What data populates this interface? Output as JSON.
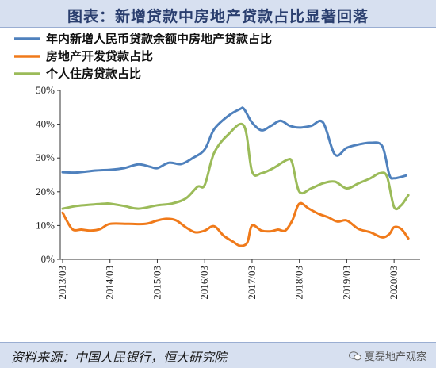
{
  "title": "图表：新增贷款中房地产贷款占比显著回落",
  "source": "资料来源：中国人民银行，恒大研究院",
  "watermark": "夏磊地产观察",
  "chart_data": {
    "type": "line",
    "ylim": [
      0,
      50
    ],
    "y_ticks": [
      "0%",
      "10%",
      "20%",
      "30%",
      "40%",
      "50%"
    ],
    "x_ticks": [
      "2013/03",
      "2014/03",
      "2015/03",
      "2016/03",
      "2017/03",
      "2018/03",
      "2019/03",
      "2020/03"
    ],
    "legend_position": "top-left",
    "series": [
      {
        "name": "年内新增人民币贷款余额中房地产贷款占比",
        "color": "#4f81bd",
        "x": [
          2013.0,
          2013.3,
          2013.7,
          2014.0,
          2014.3,
          2014.6,
          2014.85,
          2015.0,
          2015.25,
          2015.5,
          2015.75,
          2016.0,
          2016.2,
          2016.5,
          2016.75,
          2016.83,
          2017.0,
          2017.2,
          2017.4,
          2017.6,
          2017.8,
          2018.0,
          2018.25,
          2018.5,
          2018.75,
          2019.0,
          2019.25,
          2019.5,
          2019.75,
          2019.9,
          2020.0,
          2020.25
        ],
        "values": [
          25.8,
          25.7,
          26.3,
          26.5,
          27.0,
          28.1,
          27.4,
          27.0,
          28.6,
          28.2,
          30.0,
          32.5,
          38.5,
          42.5,
          44.5,
          44.5,
          40.5,
          38.2,
          39.5,
          41.0,
          39.5,
          39.0,
          39.5,
          40.5,
          31.0,
          33.0,
          34.0,
          34.5,
          33.5,
          25.0,
          24.0,
          24.8
        ]
      },
      {
        "name": "房地产开发贷款占比",
        "color": "#f07a1a",
        "x": [
          2013.0,
          2013.2,
          2013.4,
          2013.6,
          2013.8,
          2014.0,
          2014.4,
          2014.75,
          2015.0,
          2015.2,
          2015.4,
          2015.6,
          2015.8,
          2016.0,
          2016.2,
          2016.4,
          2016.6,
          2016.75,
          2016.9,
          2017.0,
          2017.2,
          2017.4,
          2017.55,
          2017.7,
          2017.85,
          2018.0,
          2018.2,
          2018.4,
          2018.6,
          2018.8,
          2019.0,
          2019.25,
          2019.5,
          2019.75,
          2019.9,
          2020.0,
          2020.15,
          2020.3
        ],
        "values": [
          13.8,
          9.0,
          8.8,
          8.5,
          9.0,
          10.5,
          10.5,
          10.5,
          11.5,
          12.0,
          11.5,
          9.5,
          8.0,
          8.5,
          9.8,
          7.0,
          5.2,
          4.0,
          5.0,
          10.0,
          8.5,
          8.3,
          8.8,
          8.5,
          11.5,
          16.5,
          15.0,
          13.5,
          12.5,
          11.2,
          11.5,
          9.0,
          8.0,
          6.5,
          7.5,
          9.5,
          9.0,
          6.2
        ]
      },
      {
        "name": "个人住房贷款占比",
        "color": "#9bbb59",
        "x": [
          2013.0,
          2013.3,
          2013.6,
          2013.9,
          2014.0,
          2014.3,
          2014.6,
          2015.0,
          2015.3,
          2015.6,
          2015.85,
          2016.0,
          2016.2,
          2016.5,
          2016.83,
          2017.0,
          2017.2,
          2017.45,
          2017.75,
          2017.85,
          2018.0,
          2018.25,
          2018.5,
          2018.75,
          2019.0,
          2019.25,
          2019.5,
          2019.7,
          2019.85,
          2020.0,
          2020.15,
          2020.3
        ],
        "values": [
          15.0,
          15.8,
          16.2,
          16.5,
          16.5,
          15.8,
          15.0,
          16.0,
          16.5,
          18.0,
          21.5,
          22.0,
          31.5,
          37.0,
          39.5,
          26.0,
          25.5,
          27.0,
          29.5,
          28.5,
          20.0,
          21.0,
          22.5,
          23.0,
          21.0,
          22.5,
          24.0,
          25.5,
          24.5,
          15.5,
          16.0,
          19.0
        ]
      }
    ]
  }
}
